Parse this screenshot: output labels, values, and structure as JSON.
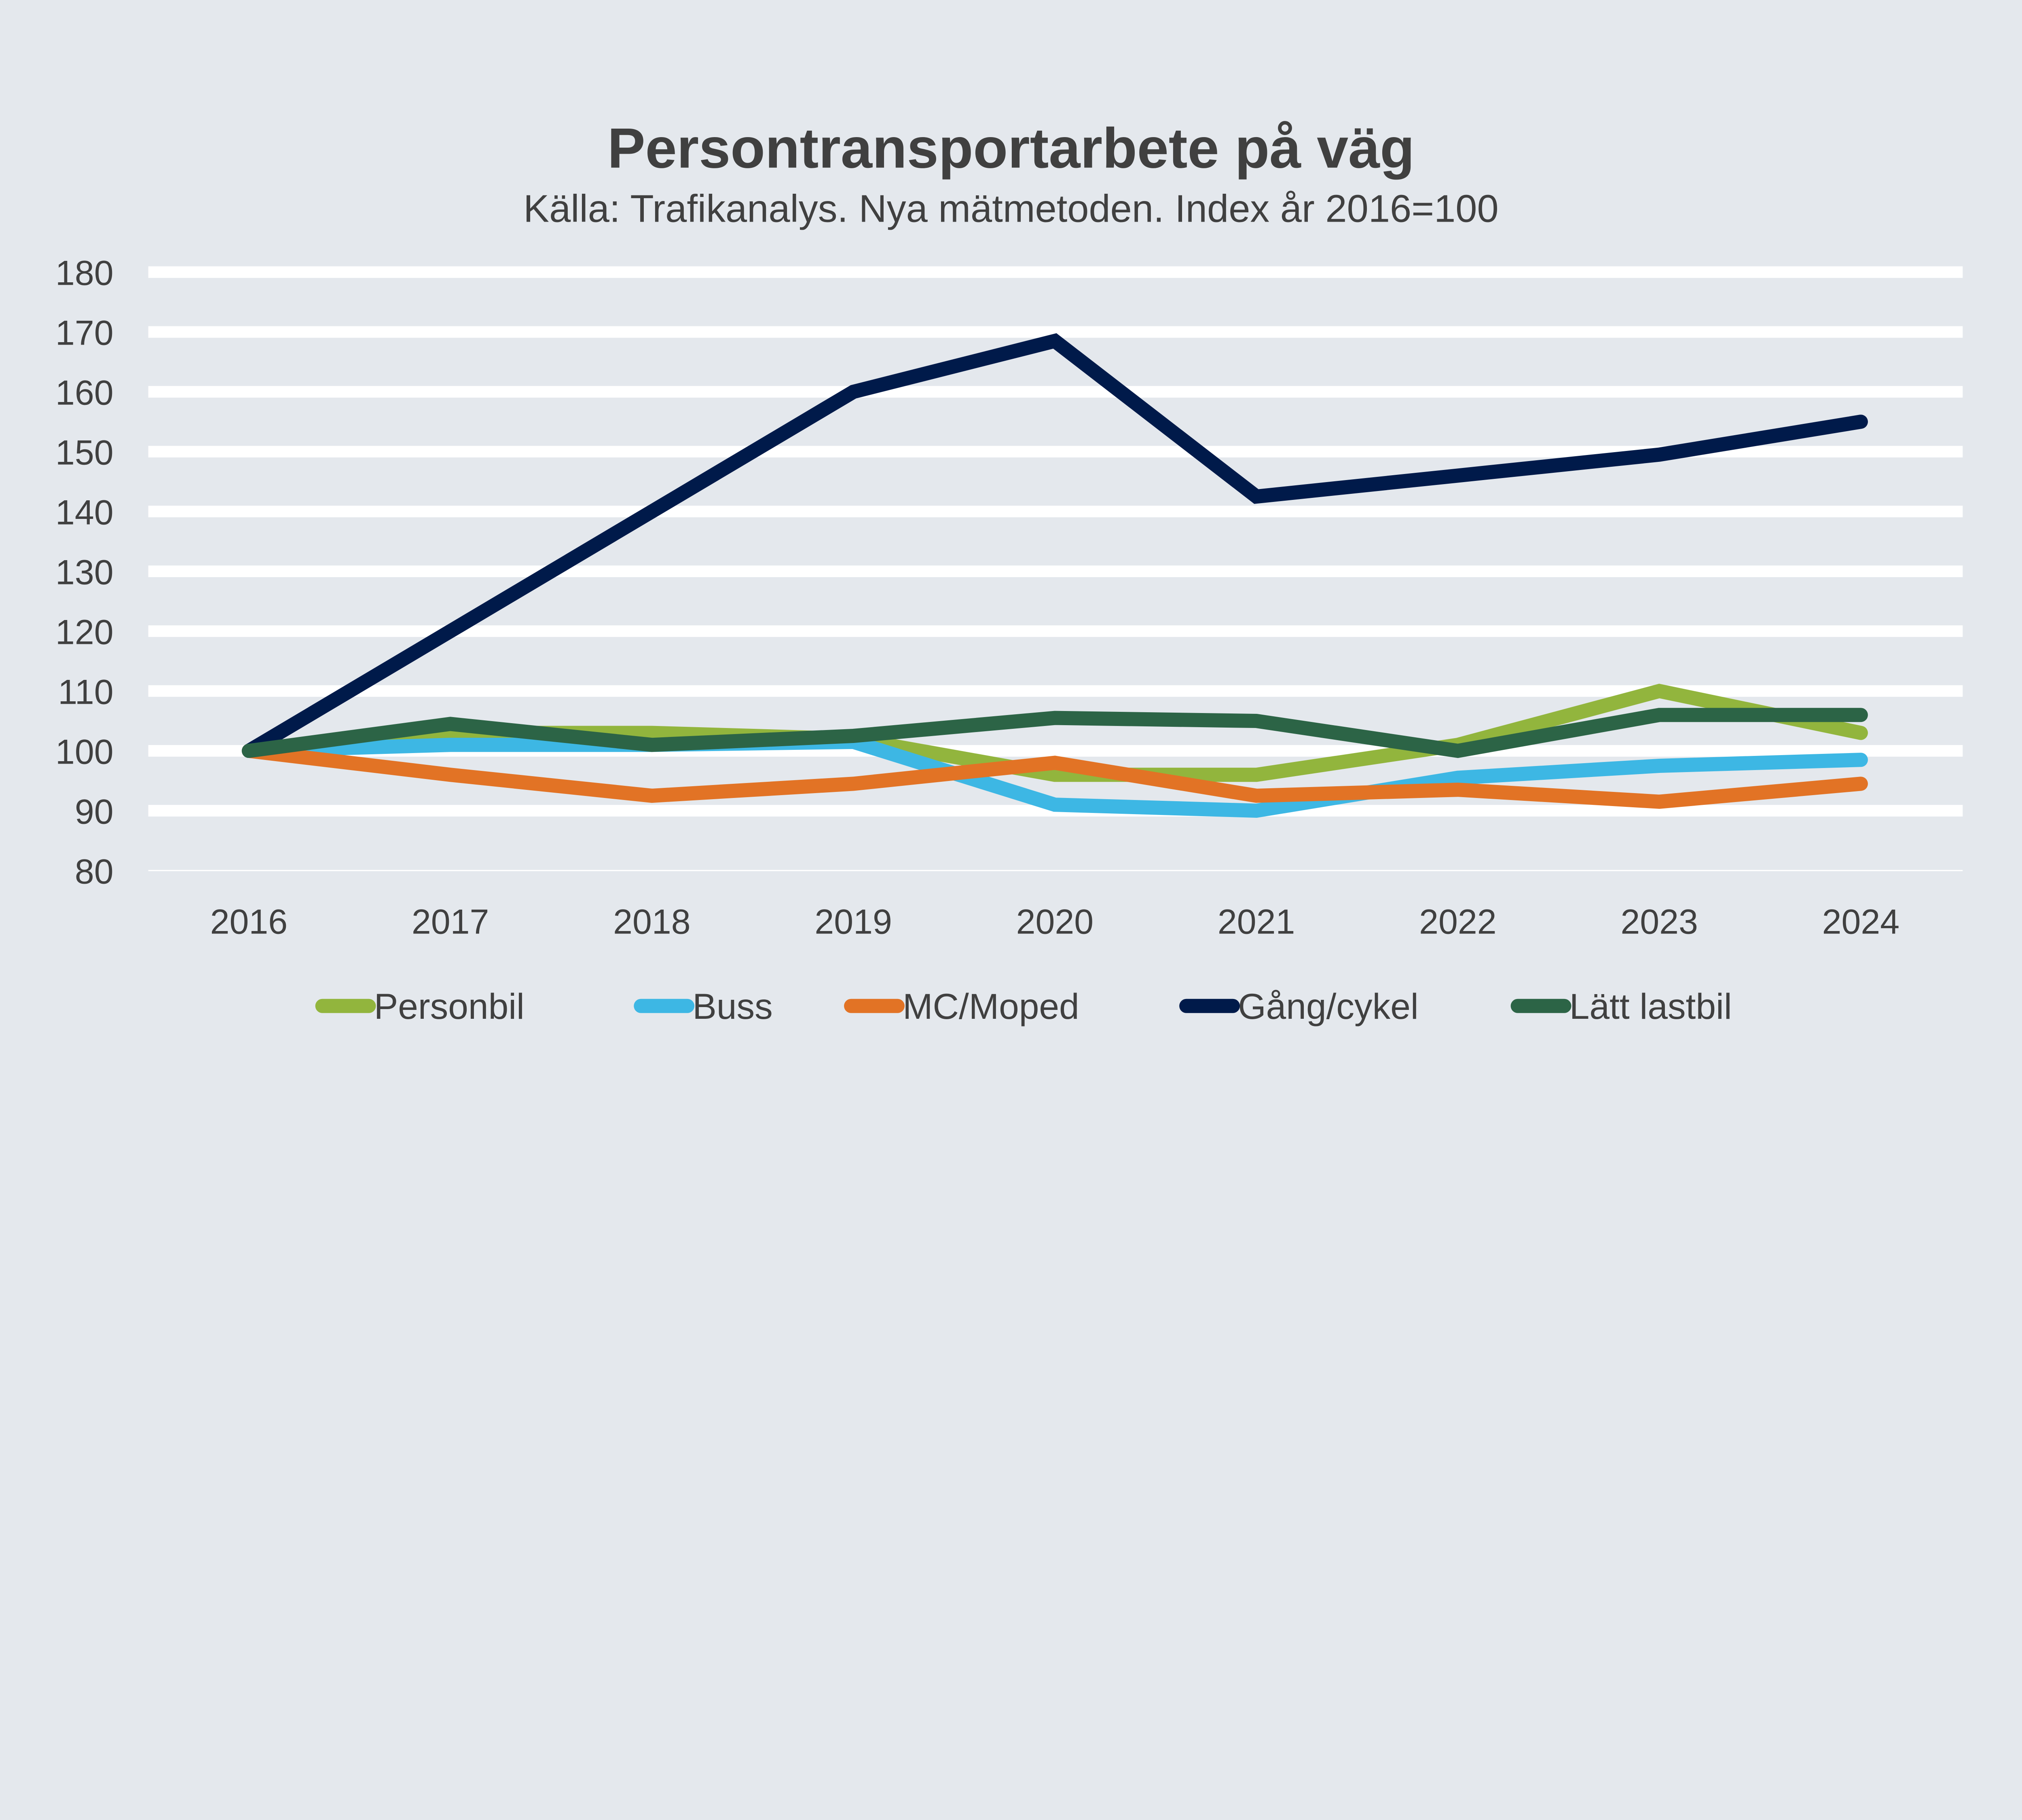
{
  "chart_data": {
    "type": "line",
    "title": "Persontransportarbete på väg",
    "subtitle": "Källa: Trafikanalys. Nya mätmetoden. Index år 2016=100",
    "xlabel": "",
    "ylabel": "",
    "categories": [
      "2016",
      "2017",
      "2018",
      "2019",
      "2020",
      "2021",
      "2022",
      "2023",
      "2024"
    ],
    "ylim": [
      80,
      180
    ],
    "yticks": [
      80,
      90,
      100,
      110,
      120,
      130,
      140,
      150,
      160,
      170,
      180
    ],
    "grid": true,
    "legend_position": "bottom",
    "series": [
      {
        "name": "Personbil",
        "color": "#92b53d",
        "values": [
          100,
          103,
          103,
          102,
          96,
          96,
          101,
          110,
          103
        ]
      },
      {
        "name": "Buss",
        "color": "#3db7e4",
        "values": [
          100,
          101,
          101,
          101.5,
          91,
          90,
          95.5,
          97.5,
          98.5
        ]
      },
      {
        "name": "MC/Moped",
        "color": "#e27325",
        "values": [
          100,
          96,
          92.5,
          94.5,
          98,
          92.5,
          93.5,
          91.5,
          94.5
        ]
      },
      {
        "name": "Gång/cykel",
        "color": "#001a4a",
        "values": [
          100,
          120,
          140,
          160,
          168.5,
          142.5,
          146,
          149.5,
          155
        ]
      },
      {
        "name": "Lätt lastbil",
        "color": "#2c6446",
        "values": [
          100,
          104.5,
          101,
          102.5,
          105.5,
          105,
          100,
          106,
          106
        ]
      }
    ]
  }
}
